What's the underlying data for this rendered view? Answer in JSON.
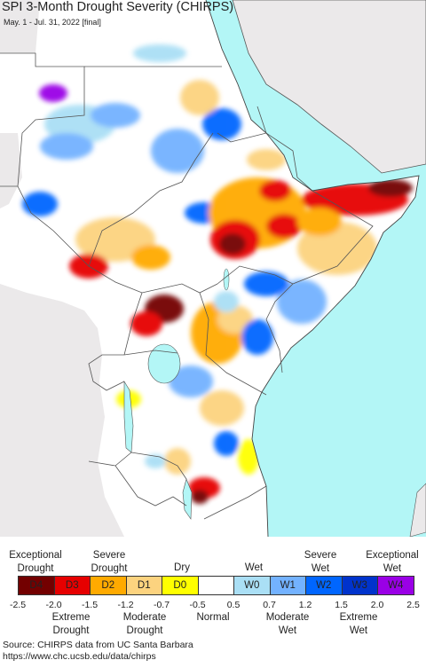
{
  "header": {
    "title": "SPI 3-Month Drought Severity (CHIRPS)",
    "subtitle": "May. 1 - Jul. 31, 2022 [final]"
  },
  "colors": {
    "ocean": "#b3f6f6",
    "land": "#ffffff",
    "outside": "#ebe9ea",
    "border": "#555555"
  },
  "legend": {
    "top_labels": [
      "Exceptional\nDrought",
      "Severe\nDrought",
      "Dry",
      "Wet",
      "Severe\nWet",
      "Exceptional\nWet"
    ],
    "bottom_labels": [
      "Extreme\nDrought",
      "Moderate\nDrought",
      "Normal",
      "Moderate\nWet",
      "Extreme\nWet"
    ],
    "classes": [
      {
        "code": "D4",
        "color": "#730000"
      },
      {
        "code": "D3",
        "color": "#e60000"
      },
      {
        "code": "D2",
        "color": "#ffaa00"
      },
      {
        "code": "D1",
        "color": "#fcd37f"
      },
      {
        "code": "D0",
        "color": "#ffff00"
      },
      {
        "code": "",
        "color": "#ffffff"
      },
      {
        "code": "W0",
        "color": "#aadff5"
      },
      {
        "code": "W1",
        "color": "#73b2ff"
      },
      {
        "code": "W2",
        "color": "#0066ff"
      },
      {
        "code": "W3",
        "color": "#0033cc"
      },
      {
        "code": "W4",
        "color": "#9a00e6"
      }
    ],
    "ticks": [
      "-2.5",
      "-2.0",
      "-1.5",
      "-1.2",
      "-0.7",
      "-0.5",
      "0.5",
      "0.7",
      "1.2",
      "1.5",
      "2.0",
      "2.5"
    ]
  },
  "source": {
    "line1": "Source: CHIRPS data from UC Santa Barbara",
    "line2": "https://www.chc.ucsb.edu/data/chirps"
  }
}
